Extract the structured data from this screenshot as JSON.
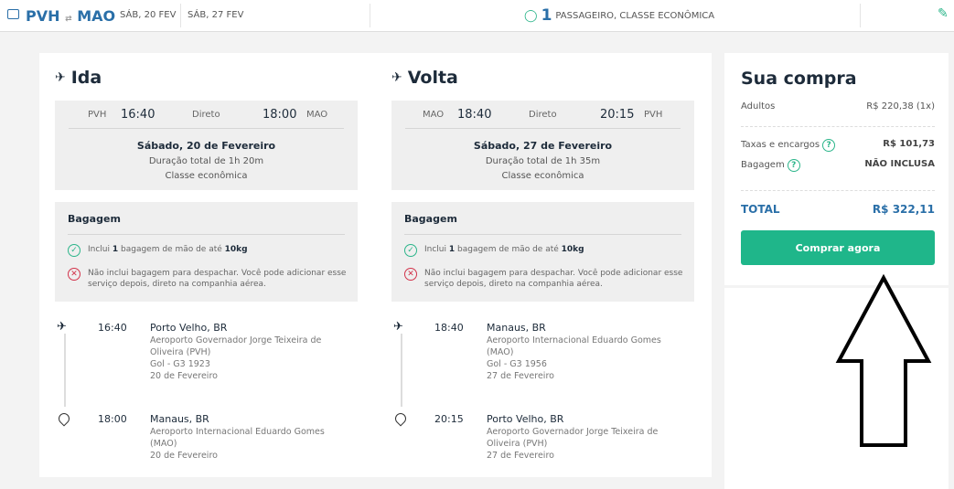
{
  "header": {
    "origin": "PVH",
    "destination": "MAO",
    "depart_date": "SÁB, 20 FEV",
    "return_date": "SÁB, 27 FEV",
    "passenger_count": "1",
    "passenger_text": "PASSAGEIRO, CLASSE ECONÔMICA"
  },
  "legs": [
    {
      "title": "Ida",
      "from": "PVH",
      "dep": "16:40",
      "type": "Direto",
      "arr": "18:00",
      "to": "MAO",
      "date": "Sábado, 20 de Fevereiro",
      "duration": "Duração total de 1h 20m",
      "class": "Classe econômica",
      "baggage_title": "Bagagem",
      "bag_pre": "Inclui ",
      "bag_n": "1",
      "bag_mid": " bagagem de mão de até ",
      "bag_kg": "10kg",
      "bag_no": "Não inclui bagagem para despachar. Você pode adicionar esse serviço depois, direto na companhia aérea.",
      "stops": [
        {
          "time": "16:40",
          "city": "Porto Velho, BR",
          "airport": "Aeroporto Governador Jorge Teixeira de Oliveira (PVH)",
          "flight": "Gol - G3 1923",
          "date": "20 de Fevereiro"
        },
        {
          "time": "18:00",
          "city": "Manaus, BR",
          "airport": "Aeroporto Internacional Eduardo Gomes (MAO)",
          "flight": "",
          "date": "20 de Fevereiro"
        }
      ]
    },
    {
      "title": "Volta",
      "from": "MAO",
      "dep": "18:40",
      "type": "Direto",
      "arr": "20:15",
      "to": "PVH",
      "date": "Sábado, 27 de Fevereiro",
      "duration": "Duração total de 1h 35m",
      "class": "Classe econômica",
      "baggage_title": "Bagagem",
      "bag_pre": "Inclui ",
      "bag_n": "1",
      "bag_mid": " bagagem de mão de até ",
      "bag_kg": "10kg",
      "bag_no": "Não inclui bagagem para despachar. Você pode adicionar esse serviço depois, direto na companhia aérea.",
      "stops": [
        {
          "time": "18:40",
          "city": "Manaus, BR",
          "airport": "Aeroporto Internacional Eduardo Gomes (MAO)",
          "flight": "Gol - G3 1956",
          "date": "27 de Fevereiro"
        },
        {
          "time": "20:15",
          "city": "Porto Velho, BR",
          "airport": "Aeroporto Governador Jorge Teixeira de Oliveira (PVH)",
          "flight": "",
          "date": "27 de Fevereiro"
        }
      ]
    }
  ],
  "summary": {
    "title": "Sua compra",
    "adults_label": "Adultos",
    "adults_value": "R$ 220,38 (1x)",
    "taxes_label": "Taxas e encargos",
    "taxes_value": "R$ 101,73",
    "bag_label": "Bagagem",
    "bag_value": "NÃO INCLUSA",
    "total_label": "TOTAL",
    "total_value": "R$ 322,11",
    "buy_label": "Comprar agora"
  },
  "colors": {
    "brand_blue": "#2a6fa8",
    "accent_green": "#1fb68a",
    "error_red": "#d2324a"
  }
}
